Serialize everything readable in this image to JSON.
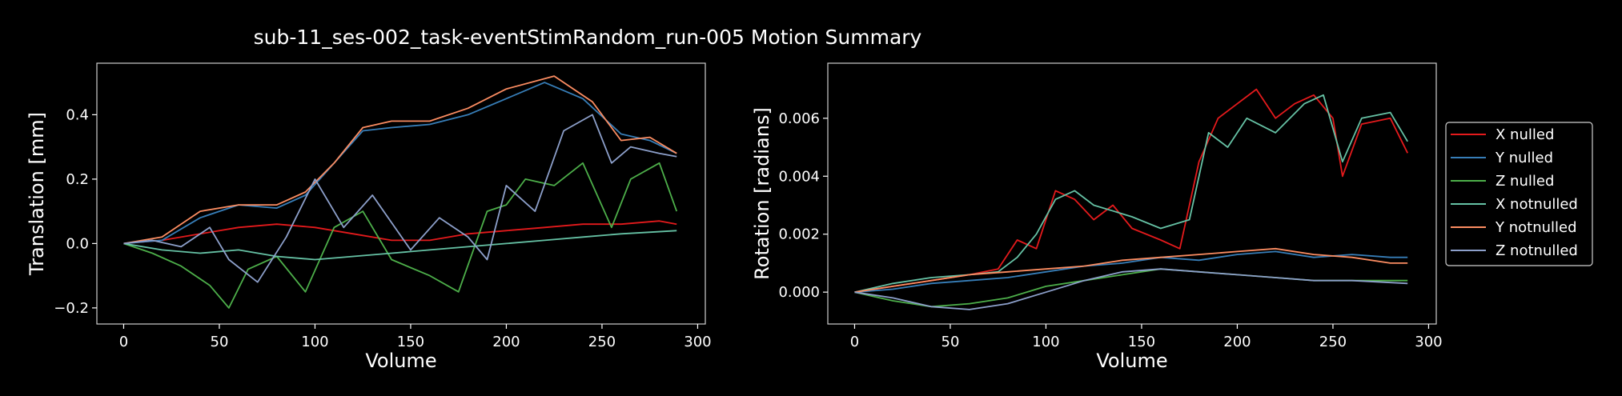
{
  "figure_title": "sub-11_ses-002_task-eventStimRandom_run-005 Motion Summary",
  "legend": [
    {
      "label": "X nulled",
      "color": "#e41a1c"
    },
    {
      "label": "Y nulled",
      "color": "#377eb8"
    },
    {
      "label": "Z nulled",
      "color": "#4daf4a"
    },
    {
      "label": "X notnulled",
      "color": "#66c2a5"
    },
    {
      "label": "Y notnulled",
      "color": "#fc8d62"
    },
    {
      "label": "Z notnulled",
      "color": "#8da0cb"
    }
  ],
  "chart_data": [
    {
      "type": "line",
      "xlabel": "Volume",
      "ylabel": "Translation [mm]",
      "xlim": [
        -14,
        304
      ],
      "ylim": [
        -0.25,
        0.56
      ],
      "xticks": [
        0,
        50,
        100,
        150,
        200,
        250,
        300
      ],
      "yticks": [
        -0.2,
        0.0,
        0.2,
        0.4
      ],
      "ytick_labels": [
        "−0.2",
        "0.0",
        "0.2",
        "0.4"
      ],
      "series": [
        {
          "name": "X nulled",
          "color": "#e41a1c",
          "points": [
            [
              0,
              0
            ],
            [
              20,
              0.01
            ],
            [
              40,
              0.03
            ],
            [
              60,
              0.05
            ],
            [
              80,
              0.06
            ],
            [
              100,
              0.05
            ],
            [
              120,
              0.03
            ],
            [
              140,
              0.01
            ],
            [
              160,
              0.01
            ],
            [
              180,
              0.03
            ],
            [
              200,
              0.04
            ],
            [
              220,
              0.05
            ],
            [
              240,
              0.06
            ],
            [
              260,
              0.06
            ],
            [
              280,
              0.07
            ],
            [
              289,
              0.06
            ]
          ]
        },
        {
          "name": "Y nulled",
          "color": "#377eb8",
          "points": [
            [
              0,
              0
            ],
            [
              20,
              0.01
            ],
            [
              40,
              0.08
            ],
            [
              60,
              0.12
            ],
            [
              80,
              0.11
            ],
            [
              95,
              0.15
            ],
            [
              110,
              0.25
            ],
            [
              125,
              0.35
            ],
            [
              140,
              0.36
            ],
            [
              160,
              0.37
            ],
            [
              180,
              0.4
            ],
            [
              200,
              0.45
            ],
            [
              220,
              0.5
            ],
            [
              240,
              0.45
            ],
            [
              260,
              0.34
            ],
            [
              275,
              0.32
            ],
            [
              289,
              0.28
            ]
          ]
        },
        {
          "name": "Z nulled",
          "color": "#4daf4a",
          "points": [
            [
              0,
              0
            ],
            [
              15,
              -0.03
            ],
            [
              30,
              -0.07
            ],
            [
              45,
              -0.13
            ],
            [
              55,
              -0.2
            ],
            [
              65,
              -0.08
            ],
            [
              80,
              -0.04
            ],
            [
              95,
              -0.15
            ],
            [
              110,
              0.05
            ],
            [
              125,
              0.1
            ],
            [
              140,
              -0.05
            ],
            [
              160,
              -0.1
            ],
            [
              175,
              -0.15
            ],
            [
              190,
              0.1
            ],
            [
              200,
              0.12
            ],
            [
              210,
              0.2
            ],
            [
              225,
              0.18
            ],
            [
              240,
              0.25
            ],
            [
              255,
              0.05
            ],
            [
              265,
              0.2
            ],
            [
              280,
              0.25
            ],
            [
              289,
              0.1
            ]
          ]
        },
        {
          "name": "X notnulled",
          "color": "#66c2a5",
          "points": [
            [
              0,
              0
            ],
            [
              20,
              -0.02
            ],
            [
              40,
              -0.03
            ],
            [
              60,
              -0.02
            ],
            [
              80,
              -0.04
            ],
            [
              100,
              -0.05
            ],
            [
              120,
              -0.04
            ],
            [
              140,
              -0.03
            ],
            [
              160,
              -0.02
            ],
            [
              180,
              -0.01
            ],
            [
              200,
              0.0
            ],
            [
              220,
              0.01
            ],
            [
              240,
              0.02
            ],
            [
              260,
              0.03
            ],
            [
              289,
              0.04
            ]
          ]
        },
        {
          "name": "Y notnulled",
          "color": "#fc8d62",
          "points": [
            [
              0,
              0
            ],
            [
              20,
              0.02
            ],
            [
              40,
              0.1
            ],
            [
              60,
              0.12
            ],
            [
              80,
              0.12
            ],
            [
              95,
              0.16
            ],
            [
              110,
              0.25
            ],
            [
              125,
              0.36
            ],
            [
              140,
              0.38
            ],
            [
              160,
              0.38
            ],
            [
              180,
              0.42
            ],
            [
              200,
              0.48
            ],
            [
              225,
              0.52
            ],
            [
              245,
              0.44
            ],
            [
              260,
              0.32
            ],
            [
              275,
              0.33
            ],
            [
              289,
              0.28
            ]
          ]
        },
        {
          "name": "Z notnulled",
          "color": "#8da0cb",
          "points": [
            [
              0,
              0
            ],
            [
              15,
              0.01
            ],
            [
              30,
              -0.01
            ],
            [
              45,
              0.05
            ],
            [
              55,
              -0.05
            ],
            [
              70,
              -0.12
            ],
            [
              85,
              0.02
            ],
            [
              100,
              0.2
            ],
            [
              115,
              0.05
            ],
            [
              130,
              0.15
            ],
            [
              150,
              -0.02
            ],
            [
              165,
              0.08
            ],
            [
              180,
              0.02
            ],
            [
              190,
              -0.05
            ],
            [
              200,
              0.18
            ],
            [
              215,
              0.1
            ],
            [
              230,
              0.35
            ],
            [
              245,
              0.4
            ],
            [
              255,
              0.25
            ],
            [
              265,
              0.3
            ],
            [
              280,
              0.28
            ],
            [
              289,
              0.27
            ]
          ]
        }
      ]
    },
    {
      "type": "line",
      "xlabel": "Volume",
      "ylabel": "Rotation [radians]",
      "xlim": [
        -14,
        304
      ],
      "ylim": [
        -0.0011,
        0.0079
      ],
      "xticks": [
        0,
        50,
        100,
        150,
        200,
        250,
        300
      ],
      "yticks": [
        0.0,
        0.002,
        0.004,
        0.006
      ],
      "ytick_labels": [
        "0.000",
        "0.002",
        "0.004",
        "0.006"
      ],
      "series": [
        {
          "name": "X nulled",
          "color": "#e41a1c",
          "points": [
            [
              0,
              0
            ],
            [
              20,
              0.0002
            ],
            [
              40,
              0.0004
            ],
            [
              60,
              0.0006
            ],
            [
              75,
              0.0008
            ],
            [
              85,
              0.0018
            ],
            [
              95,
              0.0015
            ],
            [
              105,
              0.0035
            ],
            [
              115,
              0.0032
            ],
            [
              125,
              0.0025
            ],
            [
              135,
              0.003
            ],
            [
              145,
              0.0022
            ],
            [
              160,
              0.0018
            ],
            [
              170,
              0.0015
            ],
            [
              180,
              0.0045
            ],
            [
              190,
              0.006
            ],
            [
              200,
              0.0065
            ],
            [
              210,
              0.007
            ],
            [
              220,
              0.006
            ],
            [
              230,
              0.0065
            ],
            [
              240,
              0.0068
            ],
            [
              250,
              0.006
            ],
            [
              255,
              0.004
            ],
            [
              265,
              0.0058
            ],
            [
              280,
              0.006
            ],
            [
              289,
              0.0048
            ]
          ]
        },
        {
          "name": "Y nulled",
          "color": "#377eb8",
          "points": [
            [
              0,
              0
            ],
            [
              20,
              0.0001
            ],
            [
              40,
              0.0003
            ],
            [
              60,
              0.0004
            ],
            [
              80,
              0.0005
            ],
            [
              100,
              0.0007
            ],
            [
              120,
              0.0009
            ],
            [
              140,
              0.001
            ],
            [
              160,
              0.0012
            ],
            [
              180,
              0.0011
            ],
            [
              200,
              0.0013
            ],
            [
              220,
              0.0014
            ],
            [
              240,
              0.0012
            ],
            [
              260,
              0.0013
            ],
            [
              280,
              0.0012
            ],
            [
              289,
              0.0012
            ]
          ]
        },
        {
          "name": "Z nulled",
          "color": "#4daf4a",
          "points": [
            [
              0,
              0
            ],
            [
              20,
              -0.0003
            ],
            [
              40,
              -0.0005
            ],
            [
              60,
              -0.0004
            ],
            [
              80,
              -0.0002
            ],
            [
              100,
              0.0002
            ],
            [
              120,
              0.0004
            ],
            [
              140,
              0.0006
            ],
            [
              160,
              0.0008
            ],
            [
              180,
              0.0007
            ],
            [
              200,
              0.0006
            ],
            [
              220,
              0.0005
            ],
            [
              240,
              0.0004
            ],
            [
              260,
              0.0004
            ],
            [
              289,
              0.0004
            ]
          ]
        },
        {
          "name": "X notnulled",
          "color": "#66c2a5",
          "points": [
            [
              0,
              0
            ],
            [
              20,
              0.0003
            ],
            [
              40,
              0.0005
            ],
            [
              60,
              0.0006
            ],
            [
              75,
              0.0007
            ],
            [
              85,
              0.0012
            ],
            [
              95,
              0.002
            ],
            [
              105,
              0.0032
            ],
            [
              115,
              0.0035
            ],
            [
              125,
              0.003
            ],
            [
              135,
              0.0028
            ],
            [
              145,
              0.0026
            ],
            [
              160,
              0.0022
            ],
            [
              175,
              0.0025
            ],
            [
              185,
              0.0055
            ],
            [
              195,
              0.005
            ],
            [
              205,
              0.006
            ],
            [
              220,
              0.0055
            ],
            [
              235,
              0.0065
            ],
            [
              245,
              0.0068
            ],
            [
              255,
              0.0045
            ],
            [
              265,
              0.006
            ],
            [
              280,
              0.0062
            ],
            [
              289,
              0.0052
            ]
          ]
        },
        {
          "name": "Y notnulled",
          "color": "#fc8d62",
          "points": [
            [
              0,
              0
            ],
            [
              20,
              0.0002
            ],
            [
              40,
              0.0004
            ],
            [
              60,
              0.0006
            ],
            [
              80,
              0.0007
            ],
            [
              100,
              0.0008
            ],
            [
              120,
              0.0009
            ],
            [
              140,
              0.0011
            ],
            [
              160,
              0.0012
            ],
            [
              180,
              0.0013
            ],
            [
              200,
              0.0014
            ],
            [
              220,
              0.0015
            ],
            [
              240,
              0.0013
            ],
            [
              260,
              0.0012
            ],
            [
              280,
              0.001
            ],
            [
              289,
              0.001
            ]
          ]
        },
        {
          "name": "Z notnulled",
          "color": "#8da0cb",
          "points": [
            [
              0,
              0
            ],
            [
              20,
              -0.0002
            ],
            [
              40,
              -0.0005
            ],
            [
              60,
              -0.0006
            ],
            [
              80,
              -0.0004
            ],
            [
              100,
              0.0
            ],
            [
              120,
              0.0004
            ],
            [
              140,
              0.0007
            ],
            [
              160,
              0.0008
            ],
            [
              180,
              0.0007
            ],
            [
              200,
              0.0006
            ],
            [
              220,
              0.0005
            ],
            [
              240,
              0.0004
            ],
            [
              260,
              0.0004
            ],
            [
              289,
              0.0003
            ]
          ]
        }
      ]
    }
  ]
}
